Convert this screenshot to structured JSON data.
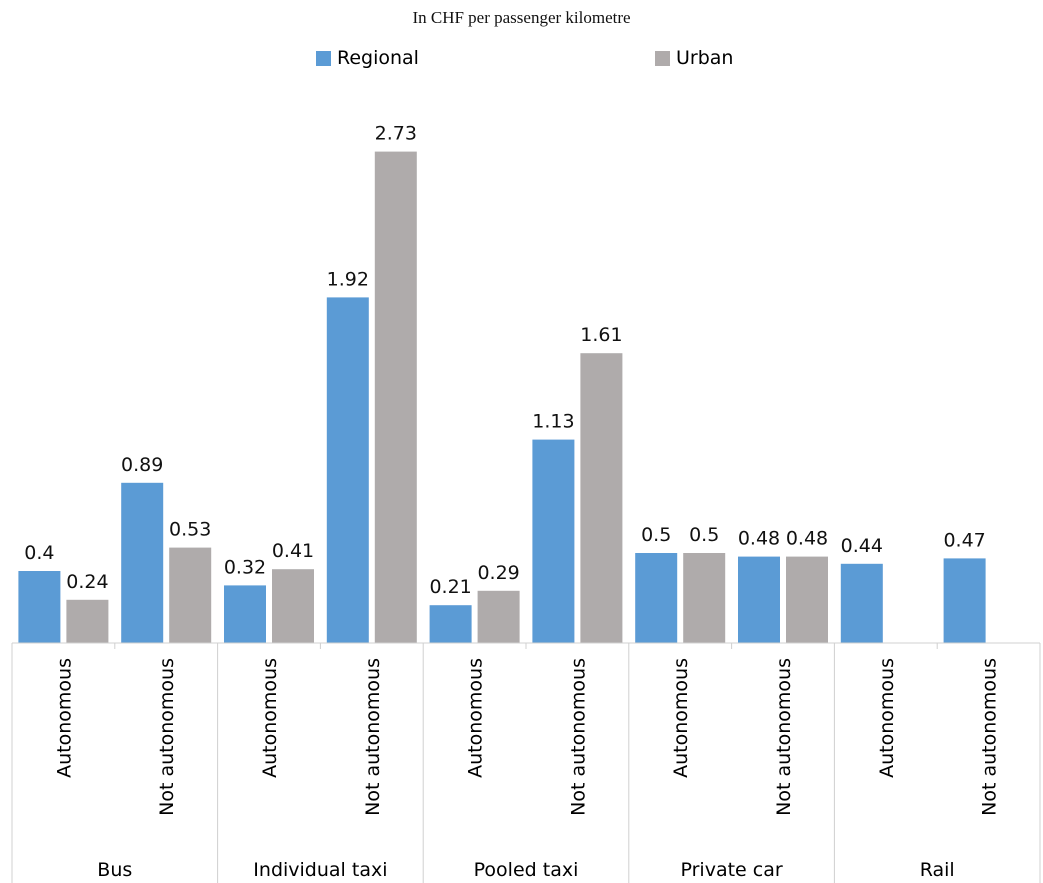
{
  "subtitle": "In CHF per passenger kilometre",
  "legend": [
    {
      "label": "Regional",
      "color": "#5b9bd5"
    },
    {
      "label": "Urban",
      "color": "#afabab"
    }
  ],
  "chart_data": {
    "type": "bar",
    "subtitle": "In CHF per passenger kilometre",
    "groups": [
      {
        "name": "Bus",
        "categories": [
          "Autonomous",
          "Not autonomous"
        ]
      },
      {
        "name": "Individual taxi",
        "categories": [
          "Autonomous",
          "Not autonomous"
        ]
      },
      {
        "name": "Pooled taxi",
        "categories": [
          "Autonomous",
          "Not autonomous"
        ]
      },
      {
        "name": "Private car",
        "categories": [
          "Autonomous",
          "Not autonomous"
        ]
      },
      {
        "name": "Rail",
        "categories": [
          "Autonomous",
          "Not autonomous"
        ]
      }
    ],
    "categories": [
      "Bus / Autonomous",
      "Bus / Not autonomous",
      "Individual taxi / Autonomous",
      "Individual taxi / Not autonomous",
      "Pooled taxi / Autonomous",
      "Pooled taxi / Not autonomous",
      "Private car / Autonomous",
      "Private car / Not autonomous",
      "Rail / Autonomous",
      "Rail / Not autonomous"
    ],
    "series": [
      {
        "name": "Regional",
        "color": "#5b9bd5",
        "values": [
          0.4,
          0.89,
          0.32,
          1.92,
          0.21,
          1.13,
          0.5,
          0.48,
          0.44,
          0.47
        ]
      },
      {
        "name": "Urban",
        "color": "#afabab",
        "values": [
          0.24,
          0.53,
          0.41,
          2.73,
          0.29,
          1.61,
          0.5,
          0.48,
          null,
          null
        ]
      }
    ],
    "ylim": [
      0,
      3
    ],
    "grid": false,
    "legend_position": "top",
    "data_labels": true
  }
}
